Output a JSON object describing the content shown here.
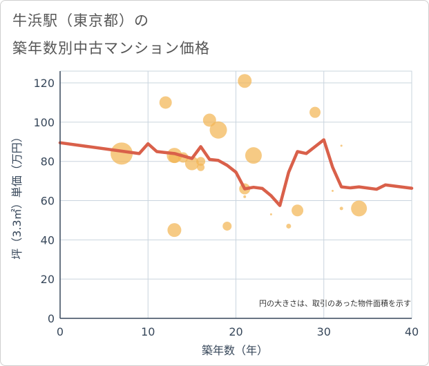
{
  "title_line1": "牛浜駅（東京都）の",
  "title_line2": "築年数別中古マンション価格",
  "chart_data": {
    "type": "scatter",
    "title": "牛浜駅（東京都）の築年数別中古マンション価格",
    "xlabel": "築年数（年）",
    "ylabel": "坪（3.3㎡）単価（万円）",
    "xlim": [
      0,
      40
    ],
    "ylim": [
      0,
      126
    ],
    "xticks": [
      0,
      10,
      20,
      30,
      40
    ],
    "yticks": [
      0,
      20,
      40,
      60,
      80,
      100,
      120
    ],
    "note": "円の大きさは、取引のあった物件面積を示す",
    "colors": {
      "bubble": "#f2b555",
      "line": "#d9604a",
      "grid": "#c9d4de",
      "axis": "#37475a"
    },
    "points": [
      {
        "x": 7,
        "y": 84,
        "size": 3.2
      },
      {
        "x": 12,
        "y": 110,
        "size": 1.8
      },
      {
        "x": 13,
        "y": 83,
        "size": 2.2
      },
      {
        "x": 13,
        "y": 82,
        "size": 1.6
      },
      {
        "x": 13,
        "y": 45,
        "size": 2.0
      },
      {
        "x": 14,
        "y": 82,
        "size": 1.5
      },
      {
        "x": 15,
        "y": 79,
        "size": 2.0
      },
      {
        "x": 16,
        "y": 77,
        "size": 1.1
      },
      {
        "x": 16,
        "y": 80,
        "size": 1.3
      },
      {
        "x": 17,
        "y": 101,
        "size": 1.9
      },
      {
        "x": 18,
        "y": 96,
        "size": 2.5
      },
      {
        "x": 19,
        "y": 47,
        "size": 1.3
      },
      {
        "x": 21,
        "y": 121,
        "size": 2.0
      },
      {
        "x": 21,
        "y": 66,
        "size": 1.6
      },
      {
        "x": 21,
        "y": 62,
        "size": 0.4
      },
      {
        "x": 22,
        "y": 83,
        "size": 2.4
      },
      {
        "x": 24,
        "y": 53,
        "size": 0.3
      },
      {
        "x": 27,
        "y": 55,
        "size": 1.7
      },
      {
        "x": 26,
        "y": 47,
        "size": 0.7
      },
      {
        "x": 29,
        "y": 105,
        "size": 1.6
      },
      {
        "x": 31,
        "y": 65,
        "size": 0.3
      },
      {
        "x": 32,
        "y": 88,
        "size": 0.3
      },
      {
        "x": 32,
        "y": 56,
        "size": 0.5
      },
      {
        "x": 34,
        "y": 56,
        "size": 2.3
      }
    ],
    "line": {
      "x": [
        0,
        9,
        10,
        11,
        13,
        15,
        16,
        17,
        18,
        19,
        20,
        21,
        22,
        23,
        24,
        25,
        26,
        27,
        28,
        29,
        30,
        31,
        32,
        33,
        34,
        36,
        37,
        40
      ],
      "y": [
        89.5,
        84,
        89,
        85,
        84,
        81.5,
        87.5,
        81,
        80.5,
        78,
        74.5,
        66,
        66.8,
        66.2,
        62.5,
        57.5,
        74.5,
        85,
        84,
        87.5,
        91,
        77,
        67,
        66.5,
        67,
        65.8,
        68,
        66.3
      ]
    }
  }
}
